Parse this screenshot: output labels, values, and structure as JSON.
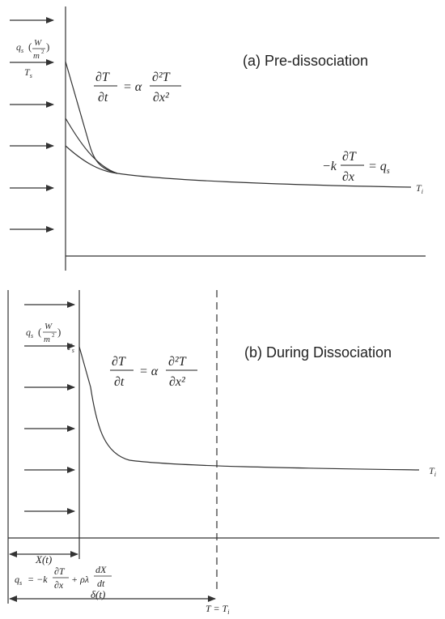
{
  "panel_a": {
    "title": "(a) Pre-dissociation",
    "heat_flux_symbol": "q",
    "heat_flux_sub": "s",
    "heat_flux_unit_num": "W",
    "heat_flux_unit_den": "m",
    "heat_flux_unit_exp": "2",
    "surface_temp_symbol": "T",
    "surface_temp_sub": "s",
    "initial_temp_symbol": "T",
    "initial_temp_sub": "i",
    "eq_pde": {
      "lhs_num": "∂T",
      "lhs_den": "∂t",
      "coeff": "= α",
      "rhs_num": "∂²T",
      "rhs_den": "∂x²"
    },
    "eq_bc": {
      "prefix": "−k",
      "num": "∂T",
      "den": "∂x",
      "suffix": "= q",
      "suffix_sub": "s"
    }
  },
  "panel_b": {
    "title": "(b) During Dissociation",
    "heat_flux_symbol": "q",
    "heat_flux_sub": "s",
    "heat_flux_unit_num": "W",
    "heat_flux_unit_den": "m",
    "heat_flux_unit_exp": "2",
    "surface_temp_symbol": "T",
    "surface_temp_sub": "s",
    "initial_temp_symbol": "T",
    "initial_temp_sub": "i",
    "eq_pde": {
      "lhs_num": "∂T",
      "lhs_den": "∂t",
      "coeff": "= α",
      "rhs_num": "∂²T",
      "rhs_den": "∂x²"
    },
    "front_label": "X(t)",
    "eq_stefan": {
      "lhs": "q",
      "lhs_sub": "s",
      "eq": "= −k",
      "num1": "∂T",
      "den1": "∂x",
      "mid": "+ ρλ",
      "num2": "dX",
      "den2": "dt"
    },
    "thermal_depth_label": "δ(t)",
    "front_temp_label": "T = T",
    "front_temp_sub": "i"
  }
}
